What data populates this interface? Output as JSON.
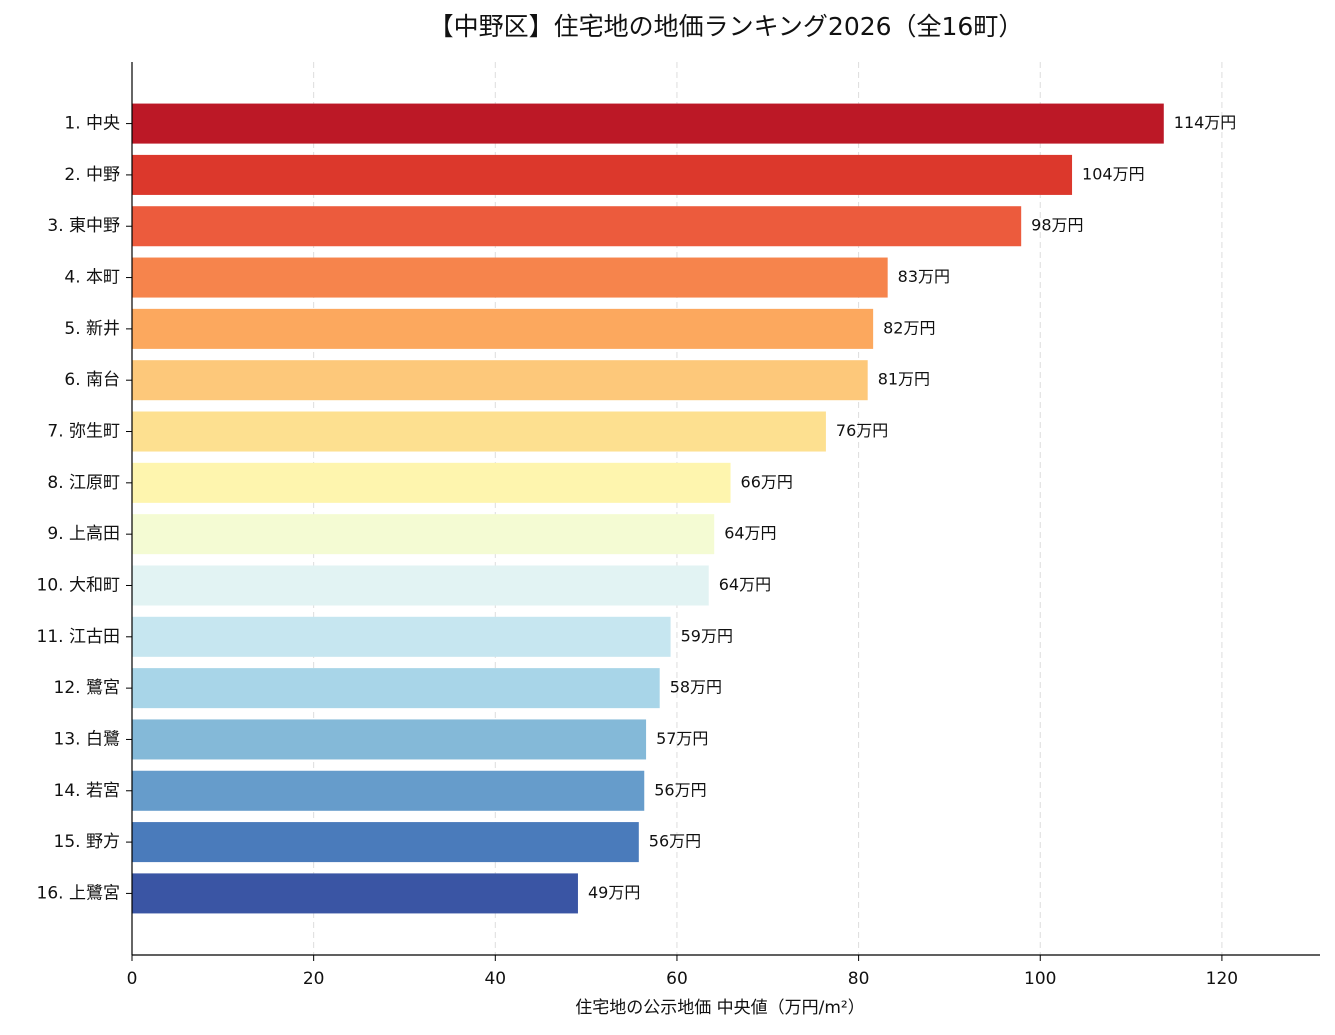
{
  "chart_data": {
    "type": "bar",
    "orientation": "horizontal",
    "title": "【中野区】住宅地の地価ランキング2026（全16町）",
    "x_label": "住宅地の公示地価 中央値（万円/m²）",
    "categories": [
      "1. 中央",
      "2. 中野",
      "3. 東中野",
      "4. 本町",
      "5. 新井",
      "6. 南台",
      "7. 弥生町",
      "8. 江原町",
      "9. 上高田",
      "10. 大和町",
      "11. 江古田",
      "12. 鷺宮",
      "13. 白鷺",
      "14. 若宮",
      "15. 野方",
      "16. 上鷺宮"
    ],
    "values": [
      113.6,
      103.5,
      97.9,
      83.2,
      81.6,
      81.0,
      76.4,
      65.9,
      64.1,
      63.5,
      59.3,
      58.1,
      56.6,
      56.4,
      55.8,
      49.1
    ],
    "value_labels": [
      "114万円",
      "104万円",
      "98万円",
      "83万円",
      "82万円",
      "81万円",
      "76万円",
      "66万円",
      "64万円",
      "64万円",
      "59万円",
      "58万円",
      "57万円",
      "56万円",
      "56万円",
      "49万円"
    ],
    "colors": [
      "#bc1826",
      "#dc382c",
      "#ec5b3d",
      "#f6844c",
      "#fca85e",
      "#fdc87a",
      "#fde090",
      "#fef5ae",
      "#f4fbd3",
      "#e2f3f3",
      "#c6e6f0",
      "#a8d5e8",
      "#84b9d8",
      "#669ccb",
      "#4a7bbb",
      "#3a55a4"
    ],
    "xlim": [
      0,
      130.8
    ],
    "xticks": [
      0,
      20,
      40,
      60,
      80,
      100,
      120
    ],
    "grid": true
  }
}
